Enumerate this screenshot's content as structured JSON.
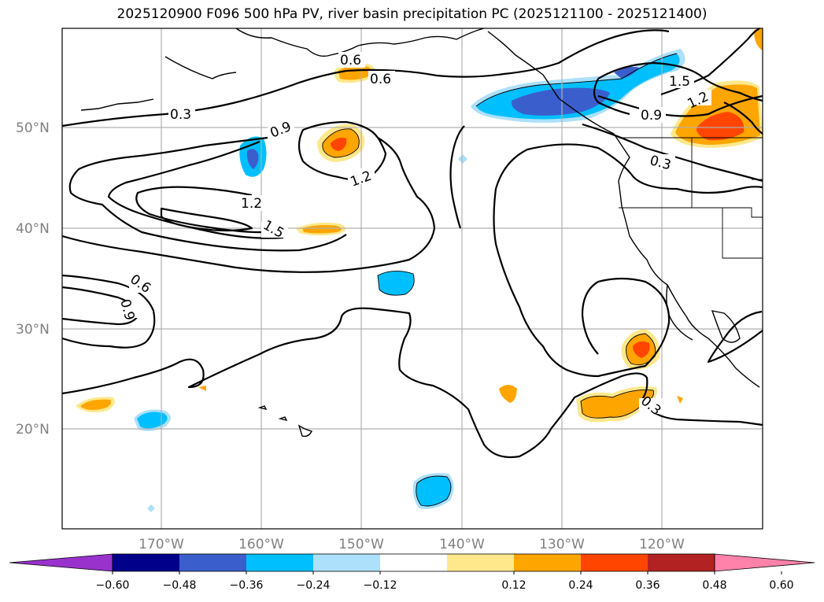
{
  "title": "2025120900 F096 500 hPa PV, river basin precipitation PC (2025121100 - 2025121400)",
  "map": {
    "lat_labels": [
      "50°N",
      "40°N",
      "30°N",
      "20°N"
    ],
    "lon_labels": [
      "170°W",
      "160°W",
      "150°W",
      "140°W",
      "130°W",
      "120°W"
    ],
    "contour_labels": [
      "0.3",
      "0.6",
      "0.9",
      "1.2",
      "1.5"
    ]
  },
  "colorbar": {
    "ticks": [
      "−0.60",
      "−0.48",
      "−0.36",
      "−0.24",
      "−0.12",
      "0.12",
      "0.24",
      "0.36",
      "0.48",
      "0.60"
    ],
    "colors": [
      "#9932CC",
      "#00008B",
      "#3A5FCD",
      "#00BFFF",
      "#ADE0FA",
      "#FFFFFF",
      "#FFE88C",
      "#FFA500",
      "#FF4500",
      "#B22222",
      "#FF82AB"
    ]
  }
}
